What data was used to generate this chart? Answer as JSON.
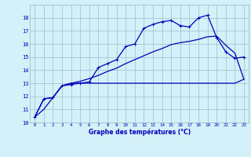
{
  "title": "Graphe des températures (°C)",
  "background_color": "#d4f0f8",
  "line_color": "#0000bb",
  "grid_color": "#9bbfcf",
  "x_values": [
    0,
    1,
    2,
    3,
    4,
    5,
    6,
    7,
    8,
    9,
    10,
    11,
    12,
    13,
    14,
    15,
    16,
    17,
    18,
    19,
    20,
    21,
    22,
    23
  ],
  "series1": [
    10.4,
    11.8,
    11.9,
    12.8,
    12.9,
    13.0,
    13.1,
    14.2,
    14.5,
    14.8,
    15.8,
    16.0,
    17.2,
    17.5,
    17.7,
    17.8,
    17.4,
    17.3,
    18.0,
    18.2,
    16.5,
    15.4,
    14.9,
    15.0
  ],
  "series2": [
    10.4,
    11.8,
    11.9,
    12.8,
    13.0,
    13.0,
    13.0,
    13.0,
    13.0,
    13.0,
    13.0,
    13.0,
    13.0,
    13.0,
    13.0,
    13.0,
    13.0,
    13.0,
    13.0,
    13.0,
    13.0,
    13.0,
    13.0,
    13.3
  ],
  "series3": [
    10.4,
    11.0,
    11.9,
    12.8,
    13.0,
    13.15,
    13.35,
    13.6,
    13.9,
    14.15,
    14.5,
    14.8,
    15.1,
    15.4,
    15.65,
    15.95,
    16.1,
    16.2,
    16.35,
    16.55,
    16.6,
    15.9,
    15.3,
    13.3
  ],
  "ylim": [
    10,
    19
  ],
  "yticks": [
    10,
    11,
    12,
    13,
    14,
    15,
    16,
    17,
    18
  ],
  "xlim": [
    -0.5,
    23.5
  ]
}
